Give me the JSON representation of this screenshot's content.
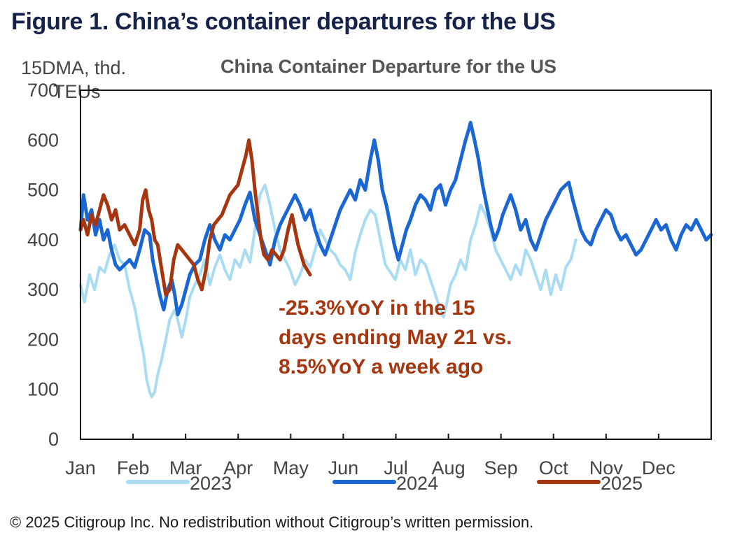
{
  "figure_title": "Figure 1. China’s container departures for the US",
  "footer": "© 2025 Citigroup Inc. No redistribution without Citigroup’s written permission.",
  "chart_data": {
    "type": "line",
    "title": "China Container Departure for the US",
    "ylabel": "15DMA, thd. TEUs",
    "ylim": [
      0,
      700
    ],
    "yticks": [
      0,
      100,
      200,
      300,
      400,
      500,
      600,
      700
    ],
    "x_axis": "day of year (Jan 1 to Dec 31)",
    "months": [
      "Jan",
      "Feb",
      "Mar",
      "Apr",
      "May",
      "Jun",
      "Jul",
      "Aug",
      "Sep",
      "Oct",
      "Nov",
      "Dec"
    ],
    "grid": false,
    "legend_position": "bottom",
    "annotation": {
      "lines": [
        "-25.3%YoY in the 15",
        "days ending May 21 vs.",
        "8.5%YoY a week ago"
      ],
      "color": "#a6360f"
    },
    "series": [
      {
        "name": "2023",
        "color": "#a9dcf3",
        "points": [
          [
            1,
            310
          ],
          [
            5,
            275
          ],
          [
            10,
            330
          ],
          [
            15,
            300
          ],
          [
            20,
            345
          ],
          [
            25,
            335
          ],
          [
            30,
            370
          ],
          [
            35,
            390
          ],
          [
            40,
            360
          ],
          [
            45,
            350
          ],
          [
            50,
            300
          ],
          [
            55,
            265
          ],
          [
            60,
            210
          ],
          [
            64,
            170
          ],
          [
            67,
            120
          ],
          [
            70,
            95
          ],
          [
            72,
            85
          ],
          [
            75,
            95
          ],
          [
            78,
            130
          ],
          [
            82,
            160
          ],
          [
            86,
            200
          ],
          [
            90,
            240
          ],
          [
            95,
            260
          ],
          [
            98,
            240
          ],
          [
            102,
            205
          ],
          [
            106,
            240
          ],
          [
            110,
            285
          ],
          [
            115,
            310
          ],
          [
            120,
            330
          ],
          [
            125,
            360
          ],
          [
            130,
            310
          ],
          [
            135,
            345
          ],
          [
            140,
            370
          ],
          [
            145,
            340
          ],
          [
            150,
            320
          ],
          [
            155,
            360
          ],
          [
            160,
            345
          ],
          [
            165,
            380
          ],
          [
            170,
            355
          ],
          [
            175,
            420
          ],
          [
            180,
            490
          ],
          [
            185,
            510
          ],
          [
            190,
            470
          ],
          [
            195,
            420
          ],
          [
            200,
            380
          ],
          [
            205,
            360
          ],
          [
            210,
            340
          ],
          [
            215,
            310
          ],
          [
            220,
            330
          ],
          [
            225,
            360
          ],
          [
            230,
            345
          ],
          [
            235,
            380
          ],
          [
            240,
            420
          ],
          [
            245,
            400
          ],
          [
            250,
            380
          ],
          [
            255,
            370
          ],
          [
            260,
            350
          ],
          [
            265,
            340
          ],
          [
            270,
            320
          ],
          [
            275,
            375
          ],
          [
            280,
            410
          ],
          [
            285,
            440
          ],
          [
            290,
            460
          ],
          [
            295,
            450
          ],
          [
            300,
            400
          ],
          [
            305,
            350
          ],
          [
            310,
            335
          ],
          [
            315,
            320
          ],
          [
            320,
            360
          ],
          [
            325,
            340
          ],
          [
            330,
            380
          ],
          [
            335,
            330
          ],
          [
            340,
            360
          ],
          [
            345,
            350
          ],
          [
            350,
            320
          ],
          [
            355,
            290
          ],
          [
            360,
            260
          ],
          [
            363,
            245
          ],
          [
            366,
            270
          ],
          [
            370,
            310
          ],
          [
            375,
            330
          ],
          [
            380,
            360
          ],
          [
            385,
            340
          ],
          [
            390,
            400
          ],
          [
            395,
            430
          ],
          [
            400,
            470
          ],
          [
            405,
            450
          ],
          [
            410,
            420
          ],
          [
            415,
            380
          ],
          [
            420,
            360
          ],
          [
            425,
            340
          ],
          [
            430,
            320
          ],
          [
            435,
            350
          ],
          [
            440,
            330
          ],
          [
            445,
            380
          ],
          [
            450,
            360
          ],
          [
            455,
            330
          ],
          [
            460,
            300
          ],
          [
            465,
            340
          ],
          [
            470,
            290
          ],
          [
            475,
            330
          ],
          [
            480,
            300
          ],
          [
            485,
            345
          ],
          [
            490,
            360
          ],
          [
            495,
            400
          ]
        ]
      },
      {
        "name": "2024",
        "color": "#1a66d2",
        "points": [
          [
            1,
            420
          ],
          [
            4,
            490
          ],
          [
            8,
            440
          ],
          [
            12,
            460
          ],
          [
            16,
            410
          ],
          [
            20,
            440
          ],
          [
            24,
            400
          ],
          [
            28,
            420
          ],
          [
            32,
            380
          ],
          [
            36,
            350
          ],
          [
            40,
            340
          ],
          [
            45,
            350
          ],
          [
            50,
            360
          ],
          [
            55,
            345
          ],
          [
            60,
            380
          ],
          [
            65,
            420
          ],
          [
            70,
            410
          ],
          [
            73,
            360
          ],
          [
            76,
            330
          ],
          [
            80,
            290
          ],
          [
            84,
            260
          ],
          [
            88,
            300
          ],
          [
            92,
            320
          ],
          [
            95,
            290
          ],
          [
            98,
            250
          ],
          [
            102,
            270
          ],
          [
            106,
            300
          ],
          [
            110,
            330
          ],
          [
            115,
            350
          ],
          [
            120,
            360
          ],
          [
            125,
            400
          ],
          [
            130,
            430
          ],
          [
            135,
            400
          ],
          [
            140,
            380
          ],
          [
            145,
            410
          ],
          [
            150,
            400
          ],
          [
            155,
            420
          ],
          [
            160,
            440
          ],
          [
            165,
            470
          ],
          [
            170,
            495
          ],
          [
            175,
            440
          ],
          [
            180,
            410
          ],
          [
            185,
            380
          ],
          [
            190,
            350
          ],
          [
            195,
            400
          ],
          [
            200,
            430
          ],
          [
            205,
            450
          ],
          [
            210,
            470
          ],
          [
            215,
            490
          ],
          [
            220,
            470
          ],
          [
            225,
            440
          ],
          [
            230,
            460
          ],
          [
            235,
            420
          ],
          [
            240,
            390
          ],
          [
            245,
            370
          ],
          [
            250,
            400
          ],
          [
            255,
            430
          ],
          [
            260,
            460
          ],
          [
            265,
            480
          ],
          [
            270,
            500
          ],
          [
            275,
            480
          ],
          [
            280,
            520
          ],
          [
            285,
            500
          ],
          [
            290,
            560
          ],
          [
            294,
            600
          ],
          [
            298,
            560
          ],
          [
            302,
            500
          ],
          [
            306,
            470
          ],
          [
            310,
            430
          ],
          [
            314,
            390
          ],
          [
            318,
            360
          ],
          [
            322,
            390
          ],
          [
            326,
            420
          ],
          [
            330,
            440
          ],
          [
            335,
            470
          ],
          [
            340,
            490
          ],
          [
            345,
            480
          ],
          [
            350,
            460
          ],
          [
            355,
            500
          ],
          [
            360,
            510
          ],
          [
            365,
            470
          ],
          [
            370,
            500
          ],
          [
            375,
            520
          ],
          [
            380,
            560
          ],
          [
            385,
            600
          ],
          [
            388,
            620
          ],
          [
            390,
            635
          ],
          [
            394,
            600
          ],
          [
            398,
            560
          ],
          [
            402,
            510
          ],
          [
            406,
            470
          ],
          [
            410,
            430
          ],
          [
            414,
            400
          ],
          [
            418,
            420
          ],
          [
            422,
            450
          ],
          [
            426,
            470
          ],
          [
            430,
            490
          ],
          [
            435,
            460
          ],
          [
            440,
            420
          ],
          [
            445,
            440
          ],
          [
            450,
            400
          ],
          [
            455,
            380
          ],
          [
            460,
            410
          ],
          [
            465,
            440
          ],
          [
            470,
            460
          ],
          [
            475,
            480
          ],
          [
            480,
            500
          ],
          [
            485,
            510
          ],
          [
            488,
            515
          ],
          [
            492,
            480
          ],
          [
            496,
            450
          ],
          [
            500,
            420
          ],
          [
            505,
            400
          ],
          [
            510,
            390
          ],
          [
            515,
            420
          ],
          [
            520,
            440
          ],
          [
            525,
            460
          ],
          [
            530,
            450
          ],
          [
            535,
            420
          ],
          [
            540,
            400
          ],
          [
            545,
            410
          ],
          [
            550,
            390
          ],
          [
            555,
            370
          ],
          [
            560,
            380
          ],
          [
            565,
            400
          ],
          [
            570,
            420
          ],
          [
            575,
            440
          ],
          [
            580,
            420
          ],
          [
            585,
            430
          ],
          [
            590,
            400
          ],
          [
            595,
            380
          ],
          [
            600,
            410
          ],
          [
            605,
            430
          ],
          [
            610,
            420
          ],
          [
            615,
            440
          ],
          [
            620,
            420
          ],
          [
            625,
            400
          ],
          [
            630,
            410
          ]
        ]
      },
      {
        "name": "2025",
        "color": "#a6360f",
        "points": [
          [
            1,
            420
          ],
          [
            4,
            440
          ],
          [
            8,
            410
          ],
          [
            12,
            450
          ],
          [
            16,
            430
          ],
          [
            20,
            460
          ],
          [
            24,
            490
          ],
          [
            28,
            470
          ],
          [
            32,
            440
          ],
          [
            36,
            460
          ],
          [
            40,
            420
          ],
          [
            45,
            430
          ],
          [
            50,
            410
          ],
          [
            55,
            390
          ],
          [
            60,
            420
          ],
          [
            63,
            480
          ],
          [
            66,
            500
          ],
          [
            69,
            460
          ],
          [
            72,
            440
          ],
          [
            75,
            400
          ],
          [
            78,
            390
          ],
          [
            82,
            340
          ],
          [
            86,
            290
          ],
          [
            90,
            300
          ],
          [
            94,
            360
          ],
          [
            98,
            390
          ],
          [
            102,
            380
          ],
          [
            106,
            370
          ],
          [
            110,
            360
          ],
          [
            114,
            350
          ],
          [
            118,
            320
          ],
          [
            122,
            300
          ],
          [
            126,
            340
          ],
          [
            130,
            400
          ],
          [
            134,
            430
          ],
          [
            138,
            440
          ],
          [
            142,
            450
          ],
          [
            146,
            470
          ],
          [
            150,
            490
          ],
          [
            154,
            500
          ],
          [
            158,
            510
          ],
          [
            162,
            540
          ],
          [
            166,
            570
          ],
          [
            169,
            600
          ],
          [
            172,
            560
          ],
          [
            175,
            500
          ],
          [
            178,
            450
          ],
          [
            181,
            400
          ],
          [
            184,
            370
          ],
          [
            188,
            360
          ],
          [
            192,
            380
          ],
          [
            196,
            370
          ],
          [
            200,
            360
          ],
          [
            204,
            380
          ],
          [
            208,
            420
          ],
          [
            212,
            450
          ],
          [
            215,
            420
          ],
          [
            218,
            390
          ],
          [
            221,
            370
          ],
          [
            224,
            350
          ],
          [
            227,
            340
          ],
          [
            230,
            330
          ]
        ]
      }
    ]
  }
}
